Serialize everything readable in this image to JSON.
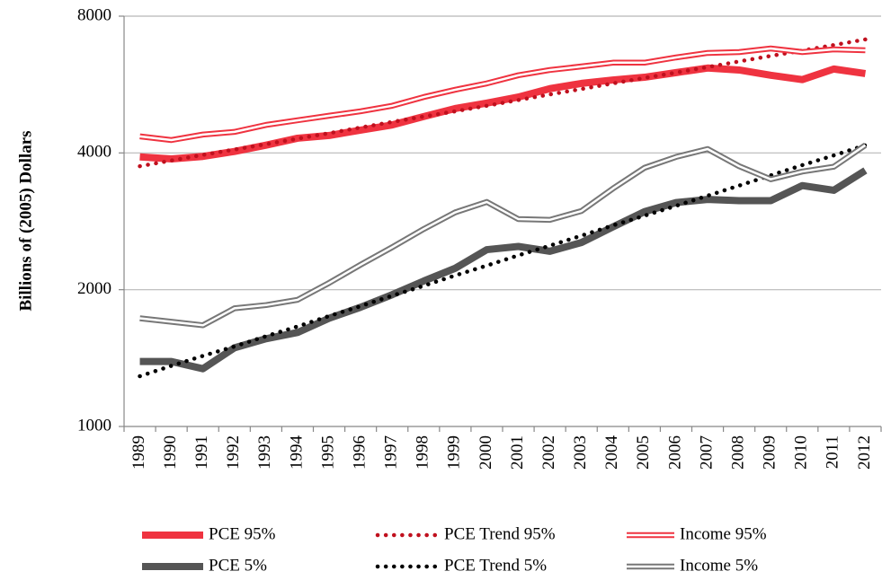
{
  "chart_data": {
    "type": "line",
    "ylabel": "Billions of (2005) Dollars",
    "categories": [
      "1989",
      "1990",
      "1991",
      "1992",
      "1993",
      "1994",
      "1995",
      "1996",
      "1997",
      "1998",
      "1999",
      "2000",
      "2001",
      "2002",
      "2003",
      "2004",
      "2005",
      "2006",
      "2007",
      "2008",
      "2009",
      "2010",
      "2011",
      "2012"
    ],
    "log_scale": true,
    "ylim": [
      1000,
      8000
    ],
    "yticks": [
      1000,
      2000,
      4000,
      8000
    ],
    "grid": true,
    "legend": "bottom",
    "series": [
      {
        "name": "PCE 95%",
        "color": "#ef3340",
        "line_style": "solid",
        "values": [
          3920,
          3880,
          3930,
          4030,
          4160,
          4310,
          4370,
          4490,
          4610,
          4810,
          5010,
          5150,
          5310,
          5540,
          5690,
          5790,
          5870,
          6010,
          6150,
          6090,
          5930,
          5800,
          6120,
          5980
        ]
      },
      {
        "name": "PCE Trend 95%",
        "color": "#c0101e",
        "line_style": "dotted",
        "values": [
          3740,
          3850,
          3960,
          4070,
          4180,
          4300,
          4420,
          4550,
          4680,
          4810,
          4940,
          5080,
          5230,
          5380,
          5530,
          5690,
          5850,
          6010,
          6180,
          6360,
          6540,
          6720,
          6910,
          7110
        ]
      },
      {
        "name": "Income 95%",
        "color": "#ef3340",
        "line_style": "double",
        "values": [
          4350,
          4270,
          4390,
          4450,
          4610,
          4720,
          4830,
          4940,
          5080,
          5310,
          5510,
          5690,
          5930,
          6090,
          6200,
          6320,
          6320,
          6490,
          6640,
          6670,
          6790,
          6670,
          6760,
          6730
        ]
      },
      {
        "name": "PCE 5%",
        "color": "#555555",
        "line_style": "solid",
        "values": [
          1390,
          1390,
          1340,
          1490,
          1560,
          1610,
          1730,
          1830,
          1950,
          2090,
          2230,
          2450,
          2490,
          2430,
          2540,
          2750,
          2970,
          3110,
          3160,
          3140,
          3140,
          3390,
          3310,
          3660
        ]
      },
      {
        "name": "PCE Trend 5%",
        "color": "#000000",
        "line_style": "dotted",
        "values": [
          1290,
          1360,
          1430,
          1500,
          1580,
          1660,
          1750,
          1840,
          1940,
          2040,
          2150,
          2260,
          2380,
          2500,
          2630,
          2770,
          2910,
          3060,
          3220,
          3390,
          3570,
          3760,
          3950,
          4160
        ]
      },
      {
        "name": "Income 5%",
        "color": "#777777",
        "line_style": "double",
        "values": [
          1730,
          1700,
          1670,
          1820,
          1850,
          1900,
          2070,
          2270,
          2480,
          2720,
          2960,
          3120,
          2860,
          2850,
          2980,
          3340,
          3710,
          3920,
          4080,
          3740,
          3500,
          3640,
          3730,
          4160
        ]
      }
    ]
  }
}
